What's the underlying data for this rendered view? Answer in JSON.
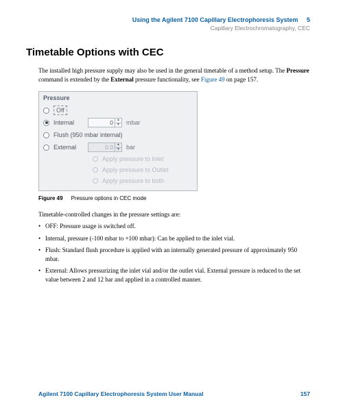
{
  "header": {
    "running_title": "Using the Agilent 7100 Capillary Electrophoresis System",
    "chapter_number": "5",
    "subtitle": "Capillary Electrochromatography, CEC"
  },
  "section_title": "Timetable Options with CEC",
  "intro": {
    "part1": "The installed high pressure supply may also be used in the general timetable of a method setup. The ",
    "bold1": "Pressure",
    "part2": " command is extended by the ",
    "bold2": "External",
    "part3": " pressure functionality, see ",
    "link": "Figure 49",
    "part4": " on page 157."
  },
  "dialog": {
    "title": "Pressure",
    "options": {
      "off": {
        "label": "Off",
        "checked": false
      },
      "internal": {
        "label": "Internal",
        "checked": true,
        "value": "0",
        "unit": "mbar"
      },
      "flush": {
        "label": "Flush (950 mbar internal)",
        "checked": false
      },
      "external": {
        "label": "External",
        "checked": false,
        "value": "0.0",
        "unit": "bar"
      }
    },
    "sub_options": [
      "Apply pressure to Inlet",
      "Apply pressure to Outlet",
      "Apply pressure to both"
    ]
  },
  "figure": {
    "label": "Figure 49",
    "caption": "Pressure options in CEC mode"
  },
  "list_intro": "Timetable-controlled changes in the pressure settings are:",
  "bullets": [
    "OFF: Pressure usage is switched off.",
    "Internal, pressure (-100 mbar to +100 mbar): Can be applied to the inlet vial.",
    "Flush: Standard flush procedure is applied with an internally generated pressure of approximately 950 mbar.",
    "External: Allows pressurizing the inlet vial and/or the outlet vial. External pressure is reduced to the set value between 2 and 12 bar and applied in a controlled manner."
  ],
  "footer": {
    "manual_title": "Agilent 7100 Capillary Electrophoresis System User Manual",
    "page_number": "157"
  },
  "colors": {
    "brand_blue": "#0b5fa5",
    "dialog_bg": "#eef0f2",
    "dialog_border": "#b0b8c0",
    "disabled_text": "#b4b9c2"
  }
}
